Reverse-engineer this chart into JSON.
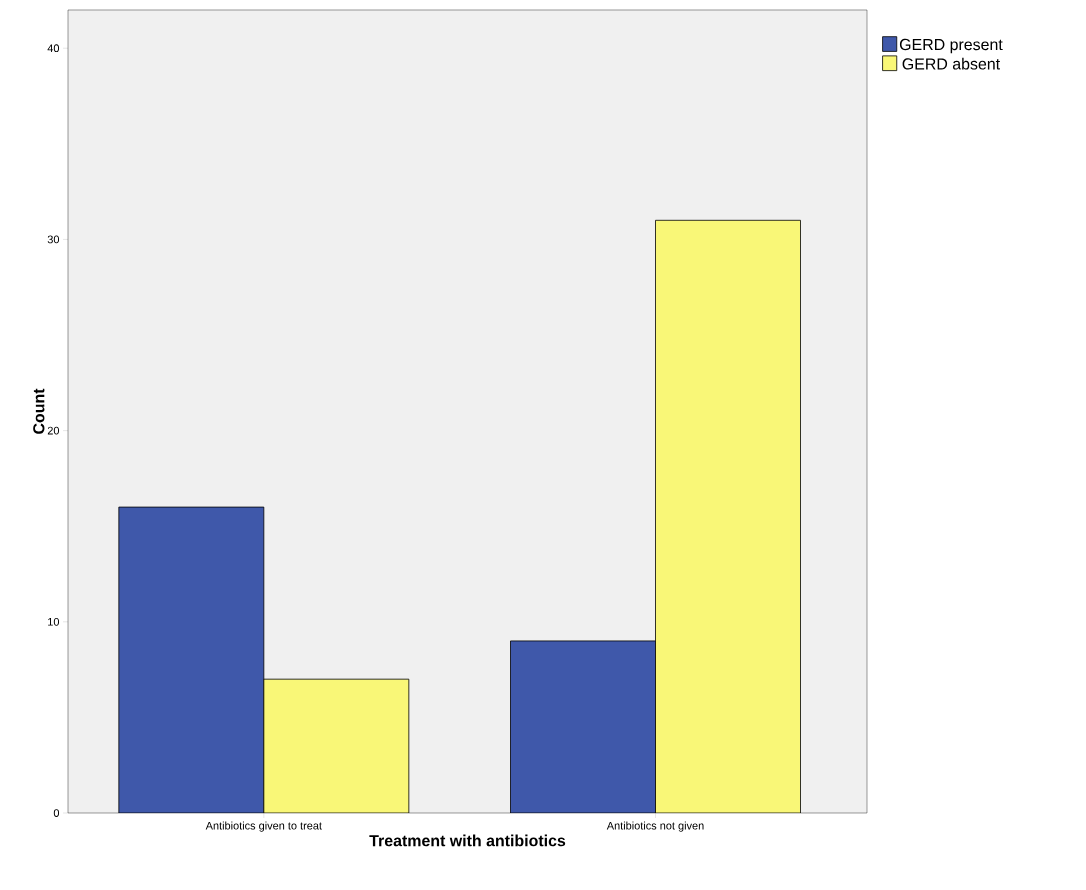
{
  "chart_data": {
    "type": "bar",
    "xlabel": "Treatment with antibiotics",
    "ylabel": "Count",
    "categories": [
      "Antibiotics given to treat",
      "Antibiotics not given"
    ],
    "series": [
      {
        "name": "GERD present",
        "color": "#3f58aa",
        "values": [
          16,
          9
        ]
      },
      {
        "name": "GERD absent",
        "color": "#f9f777",
        "values": [
          7,
          31
        ]
      }
    ],
    "ylim": [
      0,
      42
    ],
    "yticks": [
      0,
      10,
      20,
      30,
      40
    ],
    "grid": false,
    "legend": "right"
  }
}
